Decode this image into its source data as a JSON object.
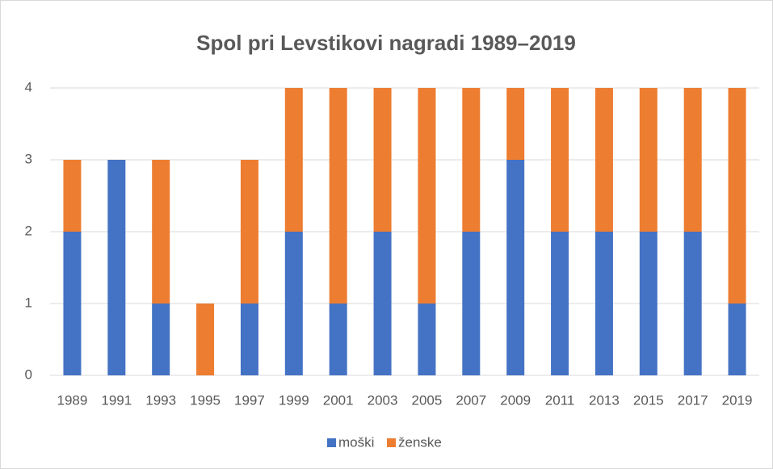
{
  "chart_data": {
    "type": "stacked_bar",
    "title": "Spol pri Levstikovi nagradi 1989–2019",
    "categories": [
      "1989",
      "1991",
      "1993",
      "1995",
      "1997",
      "1999",
      "2001",
      "2003",
      "2005",
      "2007",
      "2009",
      "2011",
      "2013",
      "2015",
      "2017",
      "2019"
    ],
    "series": [
      {
        "name": "moški",
        "color": "#4472c4",
        "values": [
          2,
          3,
          1,
          0,
          1,
          2,
          1,
          2,
          1,
          2,
          3,
          2,
          2,
          2,
          2,
          1
        ]
      },
      {
        "name": "ženske",
        "color": "#ed7d31",
        "values": [
          1,
          0,
          2,
          1,
          2,
          2,
          3,
          2,
          3,
          2,
          1,
          2,
          2,
          2,
          2,
          3
        ]
      }
    ],
    "ylim": [
      0,
      4
    ],
    "yticks": [
      0,
      1,
      2,
      3,
      4
    ],
    "grid": true,
    "legend": "bottom"
  }
}
